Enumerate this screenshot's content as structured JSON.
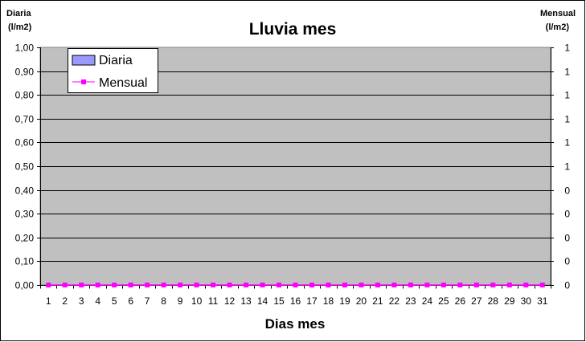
{
  "chart_data": {
    "type": "bar",
    "title": "Lluvia mes",
    "xlabel": "Dias mes",
    "ylabel_left": [
      "Diaria",
      "(l/m2)"
    ],
    "ylabel_right": [
      "Mensual",
      "(l/m2)"
    ],
    "categories": [
      "1",
      "2",
      "3",
      "4",
      "5",
      "6",
      "7",
      "8",
      "9",
      "10",
      "11",
      "12",
      "13",
      "14",
      "15",
      "16",
      "17",
      "18",
      "19",
      "20",
      "21",
      "22",
      "23",
      "24",
      "25",
      "26",
      "27",
      "28",
      "29",
      "30",
      "31"
    ],
    "ylim": [
      0,
      1
    ],
    "y_ticks_left": [
      "0,00",
      "0,10",
      "0,20",
      "0,30",
      "0,40",
      "0,50",
      "0,60",
      "0,70",
      "0,80",
      "0,90",
      "1,00"
    ],
    "y_ticks_right": [
      "0",
      "0",
      "0",
      "0",
      "0",
      "1",
      "1",
      "1",
      "1",
      "1",
      "1"
    ],
    "grid": true,
    "legend_position": "top-left",
    "series": [
      {
        "name": "Diaria",
        "kind": "bar",
        "color": "#9999ff",
        "values": [
          0,
          0,
          0,
          0,
          0,
          0,
          0,
          0,
          0,
          0,
          0,
          0,
          0,
          0,
          0,
          0,
          0,
          0,
          0,
          0,
          0,
          0,
          0,
          0,
          0,
          0,
          0,
          0,
          0,
          0,
          0
        ]
      },
      {
        "name": "Mensual",
        "kind": "line",
        "color": "#ff00ff",
        "values": [
          0,
          0,
          0,
          0,
          0,
          0,
          0,
          0,
          0,
          0,
          0,
          0,
          0,
          0,
          0,
          0,
          0,
          0,
          0,
          0,
          0,
          0,
          0,
          0,
          0,
          0,
          0,
          0,
          0,
          0,
          0
        ]
      }
    ],
    "plot_bg": "#c0c0c0"
  }
}
